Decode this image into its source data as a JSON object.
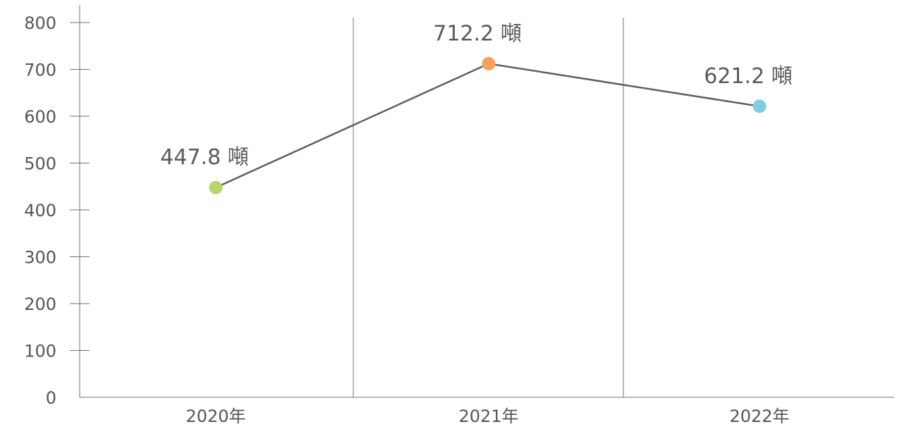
{
  "chart_data": {
    "type": "line",
    "title": "",
    "xlabel": "",
    "ylabel": "",
    "categories": [
      "2020年",
      "2021年",
      "2022年"
    ],
    "series": [
      {
        "values": [
          447.8,
          712.2,
          621.2
        ],
        "labels": [
          "447.8 噸",
          "712.2 噸",
          "621.2 噸"
        ],
        "point_colors": [
          "#b5d66a",
          "#f5a05e",
          "#7fcde0"
        ],
        "line_color": "#5f5f5f"
      }
    ],
    "ylim": [
      0,
      800
    ],
    "y_ticks": [
      "0",
      "100",
      "200",
      "300",
      "400",
      "500",
      "600",
      "700",
      "800"
    ],
    "grid": "vertical separators between categories",
    "legend": "none"
  }
}
